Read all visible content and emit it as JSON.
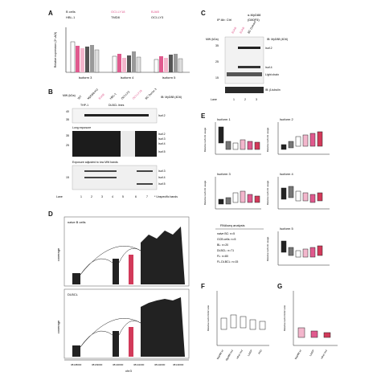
{
  "figure": {
    "panels": [
      "A",
      "B",
      "C",
      "D",
      "E",
      "F",
      "G"
    ],
    "colors": {
      "pink": "#e05a8e",
      "pink_light": "#f3b6cc",
      "gray": "#b0b0b0",
      "dark": "#222222",
      "highlight_red": "#d23a5a"
    }
  },
  "panelA": {
    "label": "A",
    "legend": [
      "B cells",
      "OCI-LY18",
      "BJAB",
      "HBL-1",
      "TMD8",
      "OCI-LY3"
    ],
    "ylabel": "Relative expression (2^-ΔCt)",
    "groups": [
      "Isoform 3",
      "Isoform 4",
      "Isoform 5"
    ]
  },
  "panelB": {
    "label": "B",
    "header_labels": [
      "MW (kDa)",
      "WT",
      "MyD88-KO",
      "BJAB",
      "HBL-1",
      "OCI-LY3",
      "OCI-LY18",
      "BC Donor 3",
      "IB: MyD88 (4D6)"
    ],
    "group_labels": [
      "THP-1",
      "DLBCL lines"
    ],
    "exposure_labels": [
      "Long exposure",
      "Exposure adjusted to low MW bands"
    ],
    "mw_marks": [
      "40",
      "35",
      "25",
      "15"
    ],
    "isoform_marks": [
      "Isof.2",
      "Isof.2",
      "Isof.3",
      "Isof.4",
      "Isof.5",
      "Isof.3",
      "Isof.4",
      "Isof.5"
    ],
    "unspecific": "* Unspecific bands",
    "lane_label": "Lane",
    "lanes": [
      "1",
      "2",
      "3",
      "4",
      "5",
      "6",
      "7"
    ]
  },
  "panelC": {
    "label": "C",
    "title": "α-MyD88",
    "ip_text": "IP Ab: Ctrl",
    "clone": "(D80F5)",
    "lane_headers": [
      "BJAB",
      "BJAB",
      "BC Donor4"
    ],
    "mw_label": "MW (kDa)",
    "ib_label": "IB: MyD88 (4D6)",
    "markers": [
      "35",
      "25",
      "15"
    ],
    "band_labels": [
      "Isof.2",
      "Isof.4",
      "Light chain"
    ],
    "ib2": "IB: β-tubulin",
    "lane_label": "Lane",
    "lanes": [
      "1",
      "2",
      "3"
    ]
  },
  "panelD": {
    "label": "D",
    "tracks": [
      "naive B cells",
      "DLBCL"
    ],
    "ylabel": "coverage",
    "xaxis_label": "chr3",
    "xticks": [
      "38138000",
      "38139000",
      "38140000",
      "38141000",
      "38142000",
      "38143000"
    ]
  },
  "panelE": {
    "label": "E",
    "subplots": [
      "Isoform 1",
      "Isoform 2",
      "Isoform 3",
      "Isoform 4",
      "Isoform 5"
    ],
    "ylabel": "Relative isoform usage",
    "categories": [
      "naive BC",
      "GCB cells",
      "BL",
      "DLBCL",
      "FL",
      "FL-DLBCL"
    ],
    "rnaseq_title": "RNAseq analysis",
    "rnaseq_rows": [
      "naive BC: n=5",
      "GCB cells: n=5",
      "BL: n=20",
      "DLBCL: n=71",
      "FL: n=80",
      "FL-DLBCL: n=15"
    ]
  },
  "panelF": {
    "label": "F",
    "ylabel": "Relative isoform3/2 ratio",
    "categories": [
      "MyD88 wt",
      "MyD88 mut",
      "other mut",
      "L265P",
      "PAD"
    ]
  },
  "panelG": {
    "label": "G",
    "ylabel": "Relative isoform3/2 ratio",
    "categories": [
      "MyD88 wt",
      "L265P",
      "other mut"
    ]
  }
}
